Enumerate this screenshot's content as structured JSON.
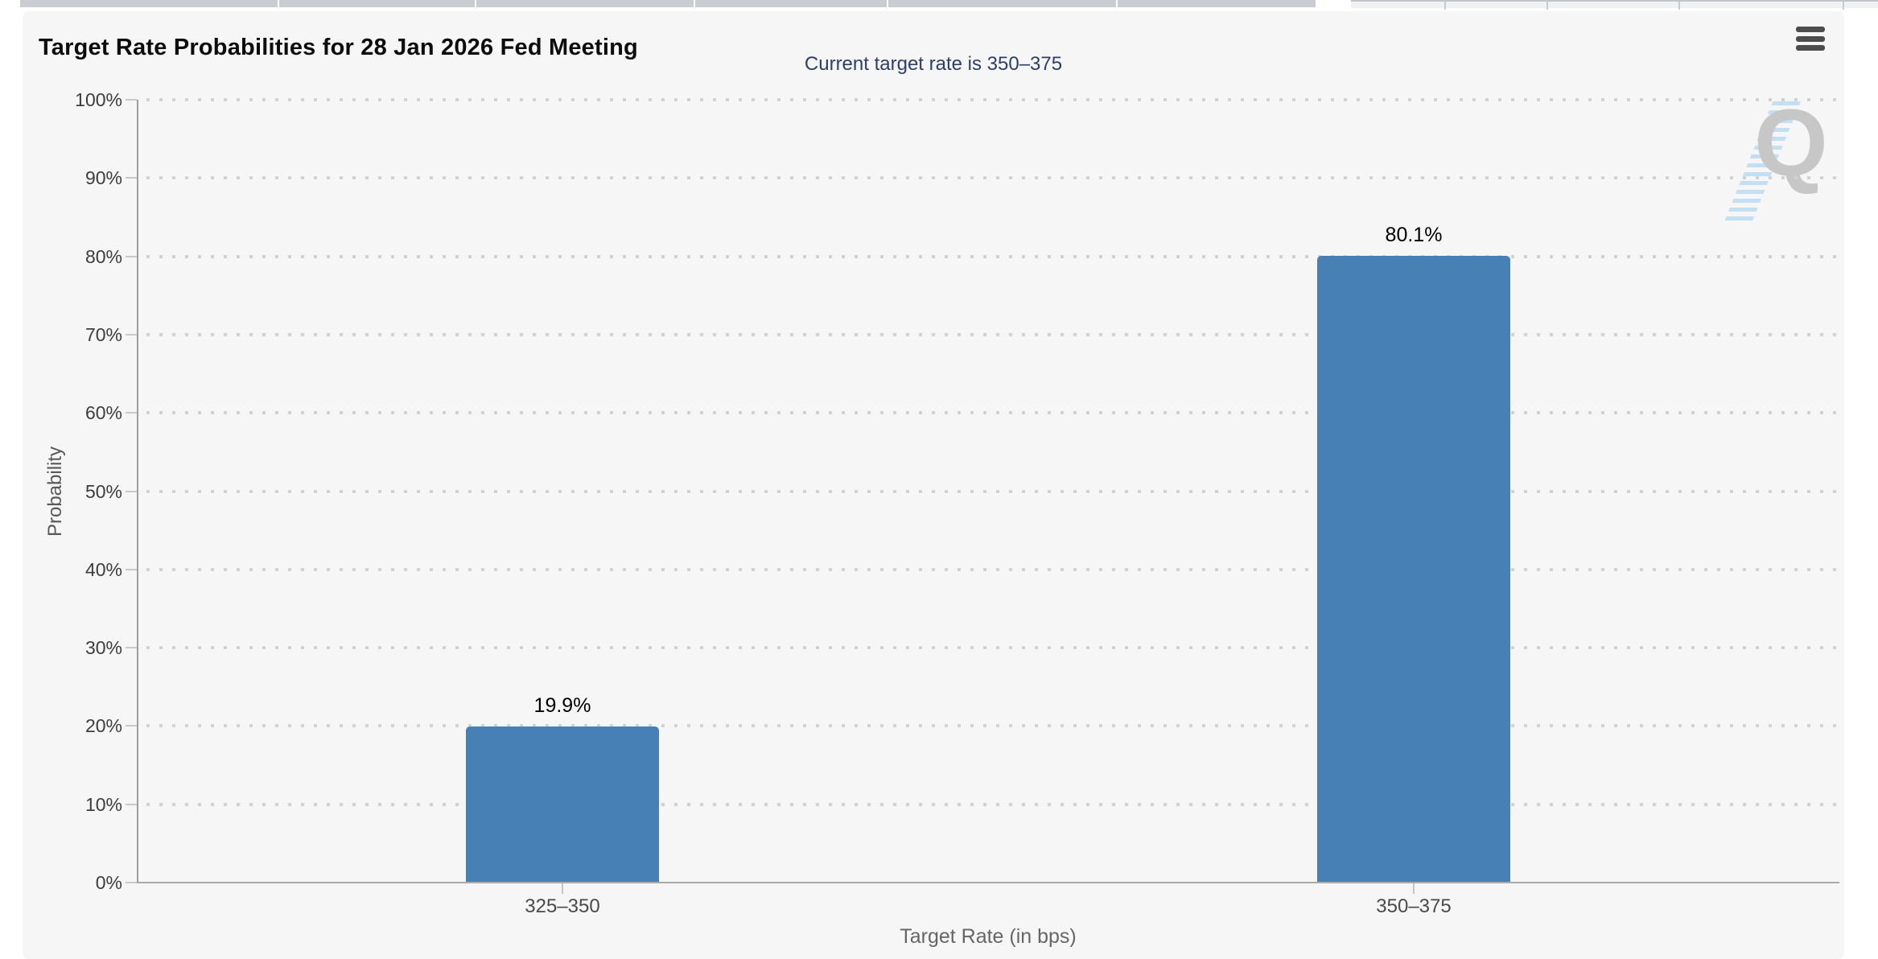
{
  "chart": {
    "title": "Target Rate Probabilities for 28 Jan 2026 Fed Meeting",
    "subtitle": "Current target rate is 350–375",
    "watermark_letter": "Q",
    "menu_icon": "hamburger-icon",
    "colors": {
      "bar": "#4680b4",
      "subtitle_text": "#2c3f68",
      "panel_background": "#f6f6f6",
      "grid_dot": "#d2d2d2",
      "watermark_stripe": "#8cc6ee"
    }
  },
  "chart_data": {
    "type": "bar",
    "title": "Target Rate Probabilities for 28 Jan 2026 Fed Meeting",
    "subtitle": "Current target rate is 350–375",
    "categories": [
      "325–350",
      "350–375"
    ],
    "values": [
      19.9,
      80.1
    ],
    "value_labels": [
      "19.9%",
      "80.1%"
    ],
    "xlabel": "Target Rate (in bps)",
    "ylabel": "Probability",
    "ylim": [
      0,
      100
    ],
    "ytick_step": 10,
    "ytick_suffix": "%",
    "grid": "horizontal-dotted",
    "legend": "none",
    "bar_color": "#4680b4"
  }
}
